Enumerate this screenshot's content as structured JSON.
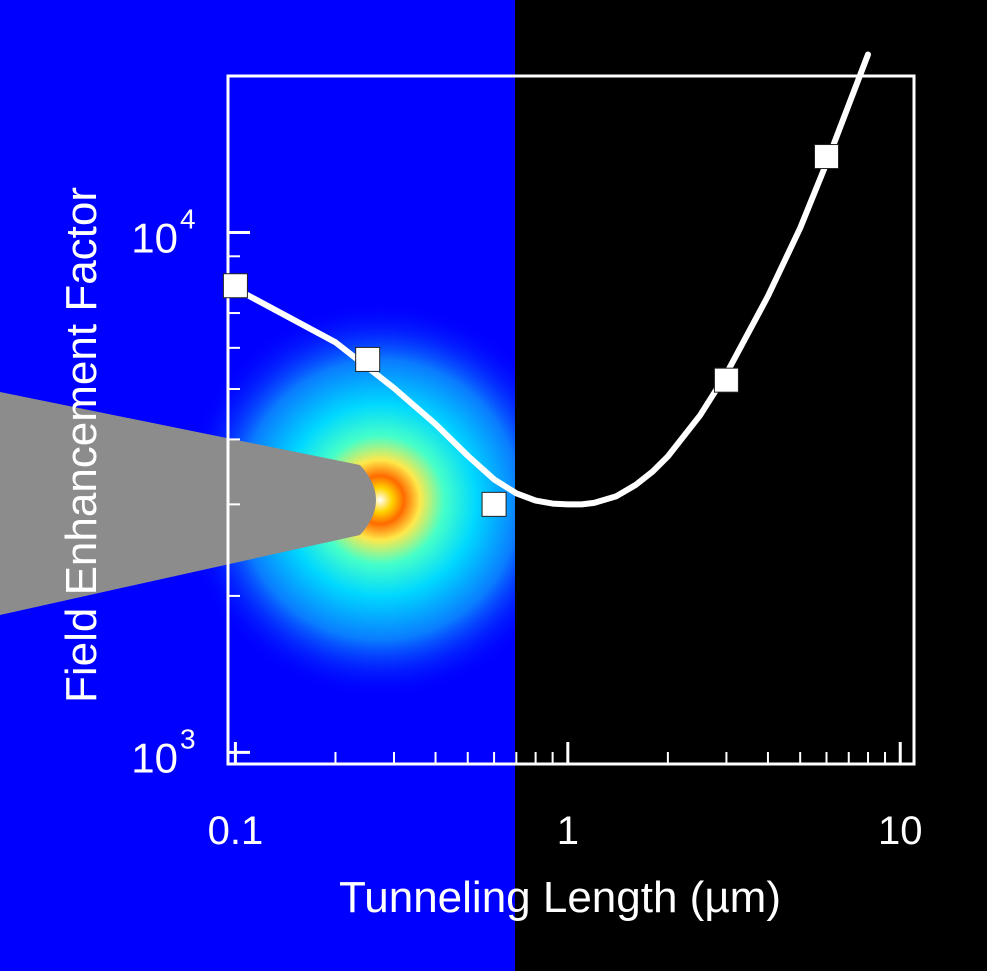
{
  "chart_data": {
    "type": "scatter",
    "xlabel": "Tunneling Length (µm)",
    "ylabel": "Field Enhancement Factor",
    "x_scale": "log",
    "y_scale": "log",
    "xlim": [
      0.095,
      11
    ],
    "ylim": [
      950,
      20000
    ],
    "x_tick_labels": [
      {
        "value": 0.1,
        "label": "0.1"
      },
      {
        "value": 1,
        "label": "1"
      },
      {
        "value": 10,
        "label": "10"
      }
    ],
    "y_tick_labels": [
      {
        "value": 1000,
        "base": "10",
        "exp": "3"
      },
      {
        "value": 10000,
        "base": "10",
        "exp": "4"
      }
    ],
    "series": [
      {
        "marker": "square",
        "color": "#ffffff",
        "x": [
          0.1,
          0.25,
          0.6,
          3,
          6
        ],
        "y": [
          7900,
          5700,
          3000,
          5200,
          14000
        ]
      }
    ],
    "fit_curve": {
      "color": "#ffffff",
      "x": [
        0.1,
        0.2,
        0.3,
        0.4,
        0.5,
        0.6,
        0.7,
        0.8,
        0.9,
        1.0,
        1.1,
        1.2,
        1.4,
        1.6,
        1.8,
        2.0,
        2.5,
        3.0,
        4.0,
        5.0,
        6.0,
        7.0,
        8.0
      ],
      "y": [
        7800,
        6150,
        5020,
        4280,
        3720,
        3350,
        3150,
        3050,
        3010,
        3000,
        3000,
        3020,
        3110,
        3270,
        3470,
        3710,
        4450,
        5350,
        7550,
        10200,
        13600,
        17600,
        22000
      ]
    },
    "grid": false,
    "legend": "none",
    "background": {
      "left_color": "#0000ff",
      "right_color": "#000000",
      "tip_color": "#8c8c8c"
    }
  }
}
